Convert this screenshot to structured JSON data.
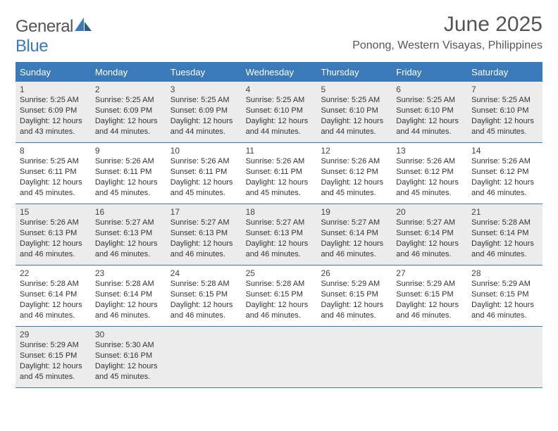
{
  "brand": {
    "part1": "General",
    "part2": "Blue"
  },
  "title": "June 2025",
  "location": "Ponong, Western Visayas, Philippines",
  "colors": {
    "header_bg": "#3a7ab8",
    "header_text": "#ffffff",
    "body_text": "#333333",
    "title_text": "#555555",
    "shade_bg": "#ececec",
    "rule": "#3a7ab8"
  },
  "typography": {
    "title_fontsize": 30,
    "location_fontsize": 16,
    "dayhead_fontsize": 13,
    "daynum_fontsize": 12,
    "info_fontsize": 11
  },
  "day_headers": [
    "Sunday",
    "Monday",
    "Tuesday",
    "Wednesday",
    "Thursday",
    "Friday",
    "Saturday"
  ],
  "weeks": [
    [
      {
        "n": "1",
        "shade": true,
        "sr": "Sunrise: 5:25 AM",
        "ss": "Sunset: 6:09 PM",
        "d1": "Daylight: 12 hours",
        "d2": "and 43 minutes."
      },
      {
        "n": "2",
        "shade": true,
        "sr": "Sunrise: 5:25 AM",
        "ss": "Sunset: 6:09 PM",
        "d1": "Daylight: 12 hours",
        "d2": "and 44 minutes."
      },
      {
        "n": "3",
        "shade": true,
        "sr": "Sunrise: 5:25 AM",
        "ss": "Sunset: 6:09 PM",
        "d1": "Daylight: 12 hours",
        "d2": "and 44 minutes."
      },
      {
        "n": "4",
        "shade": true,
        "sr": "Sunrise: 5:25 AM",
        "ss": "Sunset: 6:10 PM",
        "d1": "Daylight: 12 hours",
        "d2": "and 44 minutes."
      },
      {
        "n": "5",
        "shade": true,
        "sr": "Sunrise: 5:25 AM",
        "ss": "Sunset: 6:10 PM",
        "d1": "Daylight: 12 hours",
        "d2": "and 44 minutes."
      },
      {
        "n": "6",
        "shade": true,
        "sr": "Sunrise: 5:25 AM",
        "ss": "Sunset: 6:10 PM",
        "d1": "Daylight: 12 hours",
        "d2": "and 44 minutes."
      },
      {
        "n": "7",
        "shade": true,
        "sr": "Sunrise: 5:25 AM",
        "ss": "Sunset: 6:10 PM",
        "d1": "Daylight: 12 hours",
        "d2": "and 45 minutes."
      }
    ],
    [
      {
        "n": "8",
        "shade": false,
        "sr": "Sunrise: 5:25 AM",
        "ss": "Sunset: 6:11 PM",
        "d1": "Daylight: 12 hours",
        "d2": "and 45 minutes."
      },
      {
        "n": "9",
        "shade": false,
        "sr": "Sunrise: 5:26 AM",
        "ss": "Sunset: 6:11 PM",
        "d1": "Daylight: 12 hours",
        "d2": "and 45 minutes."
      },
      {
        "n": "10",
        "shade": false,
        "sr": "Sunrise: 5:26 AM",
        "ss": "Sunset: 6:11 PM",
        "d1": "Daylight: 12 hours",
        "d2": "and 45 minutes."
      },
      {
        "n": "11",
        "shade": false,
        "sr": "Sunrise: 5:26 AM",
        "ss": "Sunset: 6:11 PM",
        "d1": "Daylight: 12 hours",
        "d2": "and 45 minutes."
      },
      {
        "n": "12",
        "shade": false,
        "sr": "Sunrise: 5:26 AM",
        "ss": "Sunset: 6:12 PM",
        "d1": "Daylight: 12 hours",
        "d2": "and 45 minutes."
      },
      {
        "n": "13",
        "shade": false,
        "sr": "Sunrise: 5:26 AM",
        "ss": "Sunset: 6:12 PM",
        "d1": "Daylight: 12 hours",
        "d2": "and 45 minutes."
      },
      {
        "n": "14",
        "shade": false,
        "sr": "Sunrise: 5:26 AM",
        "ss": "Sunset: 6:12 PM",
        "d1": "Daylight: 12 hours",
        "d2": "and 46 minutes."
      }
    ],
    [
      {
        "n": "15",
        "shade": true,
        "sr": "Sunrise: 5:26 AM",
        "ss": "Sunset: 6:13 PM",
        "d1": "Daylight: 12 hours",
        "d2": "and 46 minutes."
      },
      {
        "n": "16",
        "shade": true,
        "sr": "Sunrise: 5:27 AM",
        "ss": "Sunset: 6:13 PM",
        "d1": "Daylight: 12 hours",
        "d2": "and 46 minutes."
      },
      {
        "n": "17",
        "shade": true,
        "sr": "Sunrise: 5:27 AM",
        "ss": "Sunset: 6:13 PM",
        "d1": "Daylight: 12 hours",
        "d2": "and 46 minutes."
      },
      {
        "n": "18",
        "shade": true,
        "sr": "Sunrise: 5:27 AM",
        "ss": "Sunset: 6:13 PM",
        "d1": "Daylight: 12 hours",
        "d2": "and 46 minutes."
      },
      {
        "n": "19",
        "shade": true,
        "sr": "Sunrise: 5:27 AM",
        "ss": "Sunset: 6:14 PM",
        "d1": "Daylight: 12 hours",
        "d2": "and 46 minutes."
      },
      {
        "n": "20",
        "shade": true,
        "sr": "Sunrise: 5:27 AM",
        "ss": "Sunset: 6:14 PM",
        "d1": "Daylight: 12 hours",
        "d2": "and 46 minutes."
      },
      {
        "n": "21",
        "shade": true,
        "sr": "Sunrise: 5:28 AM",
        "ss": "Sunset: 6:14 PM",
        "d1": "Daylight: 12 hours",
        "d2": "and 46 minutes."
      }
    ],
    [
      {
        "n": "22",
        "shade": false,
        "sr": "Sunrise: 5:28 AM",
        "ss": "Sunset: 6:14 PM",
        "d1": "Daylight: 12 hours",
        "d2": "and 46 minutes."
      },
      {
        "n": "23",
        "shade": false,
        "sr": "Sunrise: 5:28 AM",
        "ss": "Sunset: 6:14 PM",
        "d1": "Daylight: 12 hours",
        "d2": "and 46 minutes."
      },
      {
        "n": "24",
        "shade": false,
        "sr": "Sunrise: 5:28 AM",
        "ss": "Sunset: 6:15 PM",
        "d1": "Daylight: 12 hours",
        "d2": "and 46 minutes."
      },
      {
        "n": "25",
        "shade": false,
        "sr": "Sunrise: 5:28 AM",
        "ss": "Sunset: 6:15 PM",
        "d1": "Daylight: 12 hours",
        "d2": "and 46 minutes."
      },
      {
        "n": "26",
        "shade": false,
        "sr": "Sunrise: 5:29 AM",
        "ss": "Sunset: 6:15 PM",
        "d1": "Daylight: 12 hours",
        "d2": "and 46 minutes."
      },
      {
        "n": "27",
        "shade": false,
        "sr": "Sunrise: 5:29 AM",
        "ss": "Sunset: 6:15 PM",
        "d1": "Daylight: 12 hours",
        "d2": "and 46 minutes."
      },
      {
        "n": "28",
        "shade": false,
        "sr": "Sunrise: 5:29 AM",
        "ss": "Sunset: 6:15 PM",
        "d1": "Daylight: 12 hours",
        "d2": "and 46 minutes."
      }
    ],
    [
      {
        "n": "29",
        "shade": true,
        "sr": "Sunrise: 5:29 AM",
        "ss": "Sunset: 6:15 PM",
        "d1": "Daylight: 12 hours",
        "d2": "and 45 minutes."
      },
      {
        "n": "30",
        "shade": true,
        "sr": "Sunrise: 5:30 AM",
        "ss": "Sunset: 6:16 PM",
        "d1": "Daylight: 12 hours",
        "d2": "and 45 minutes."
      },
      {
        "n": "",
        "shade": true,
        "sr": "",
        "ss": "",
        "d1": "",
        "d2": ""
      },
      {
        "n": "",
        "shade": true,
        "sr": "",
        "ss": "",
        "d1": "",
        "d2": ""
      },
      {
        "n": "",
        "shade": true,
        "sr": "",
        "ss": "",
        "d1": "",
        "d2": ""
      },
      {
        "n": "",
        "shade": true,
        "sr": "",
        "ss": "",
        "d1": "",
        "d2": ""
      },
      {
        "n": "",
        "shade": true,
        "sr": "",
        "ss": "",
        "d1": "",
        "d2": ""
      }
    ]
  ]
}
